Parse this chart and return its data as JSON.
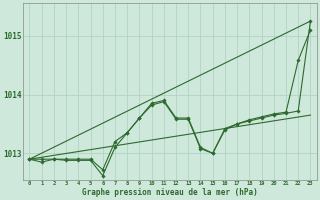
{
  "bg_color": "#cfe8dc",
  "grid_color": "#b0d4c4",
  "line_color": "#2d6a2d",
  "title": "Graphe pression niveau de la mer (hPa)",
  "xlim": [
    -0.5,
    23.5
  ],
  "ylim": [
    1012.55,
    1015.55
  ],
  "yticks": [
    1013,
    1014,
    1015
  ],
  "xticks": [
    0,
    1,
    2,
    3,
    4,
    5,
    6,
    7,
    8,
    9,
    10,
    11,
    12,
    13,
    14,
    15,
    16,
    17,
    18,
    19,
    20,
    21,
    22,
    23
  ],
  "series": {
    "upper_line_x": [
      0,
      23
    ],
    "upper_line_y": [
      1012.9,
      1015.25
    ],
    "lower_line_x": [
      0,
      23
    ],
    "lower_line_y": [
      1012.9,
      1013.65
    ],
    "zigzag1_x": [
      0,
      1,
      2,
      3,
      4,
      5,
      6,
      7,
      8,
      9,
      10,
      11,
      12,
      13,
      14,
      15,
      16,
      17,
      18,
      19,
      20,
      21,
      22,
      23
    ],
    "zigzag1_y": [
      1012.9,
      1012.9,
      1012.9,
      1012.9,
      1012.9,
      1012.9,
      1012.72,
      1013.2,
      1013.35,
      1013.6,
      1013.85,
      1013.9,
      1013.6,
      1013.6,
      1013.1,
      1013.0,
      1013.4,
      1013.5,
      1013.55,
      1013.6,
      1013.65,
      1013.68,
      1013.72,
      1015.25
    ],
    "zigzag2_x": [
      0,
      1,
      2,
      3,
      4,
      5,
      6,
      7,
      8,
      9,
      10,
      11,
      12,
      13,
      14,
      15,
      16,
      17,
      18,
      19,
      20,
      21,
      22,
      23
    ],
    "zigzag2_y": [
      1012.9,
      1012.85,
      1012.9,
      1012.88,
      1012.88,
      1012.88,
      1012.62,
      1013.1,
      1013.35,
      1013.6,
      1013.82,
      1013.88,
      1013.58,
      1013.58,
      1013.08,
      1013.0,
      1013.42,
      1013.5,
      1013.57,
      1013.62,
      1013.67,
      1013.7,
      1014.58,
      1015.1
    ]
  }
}
